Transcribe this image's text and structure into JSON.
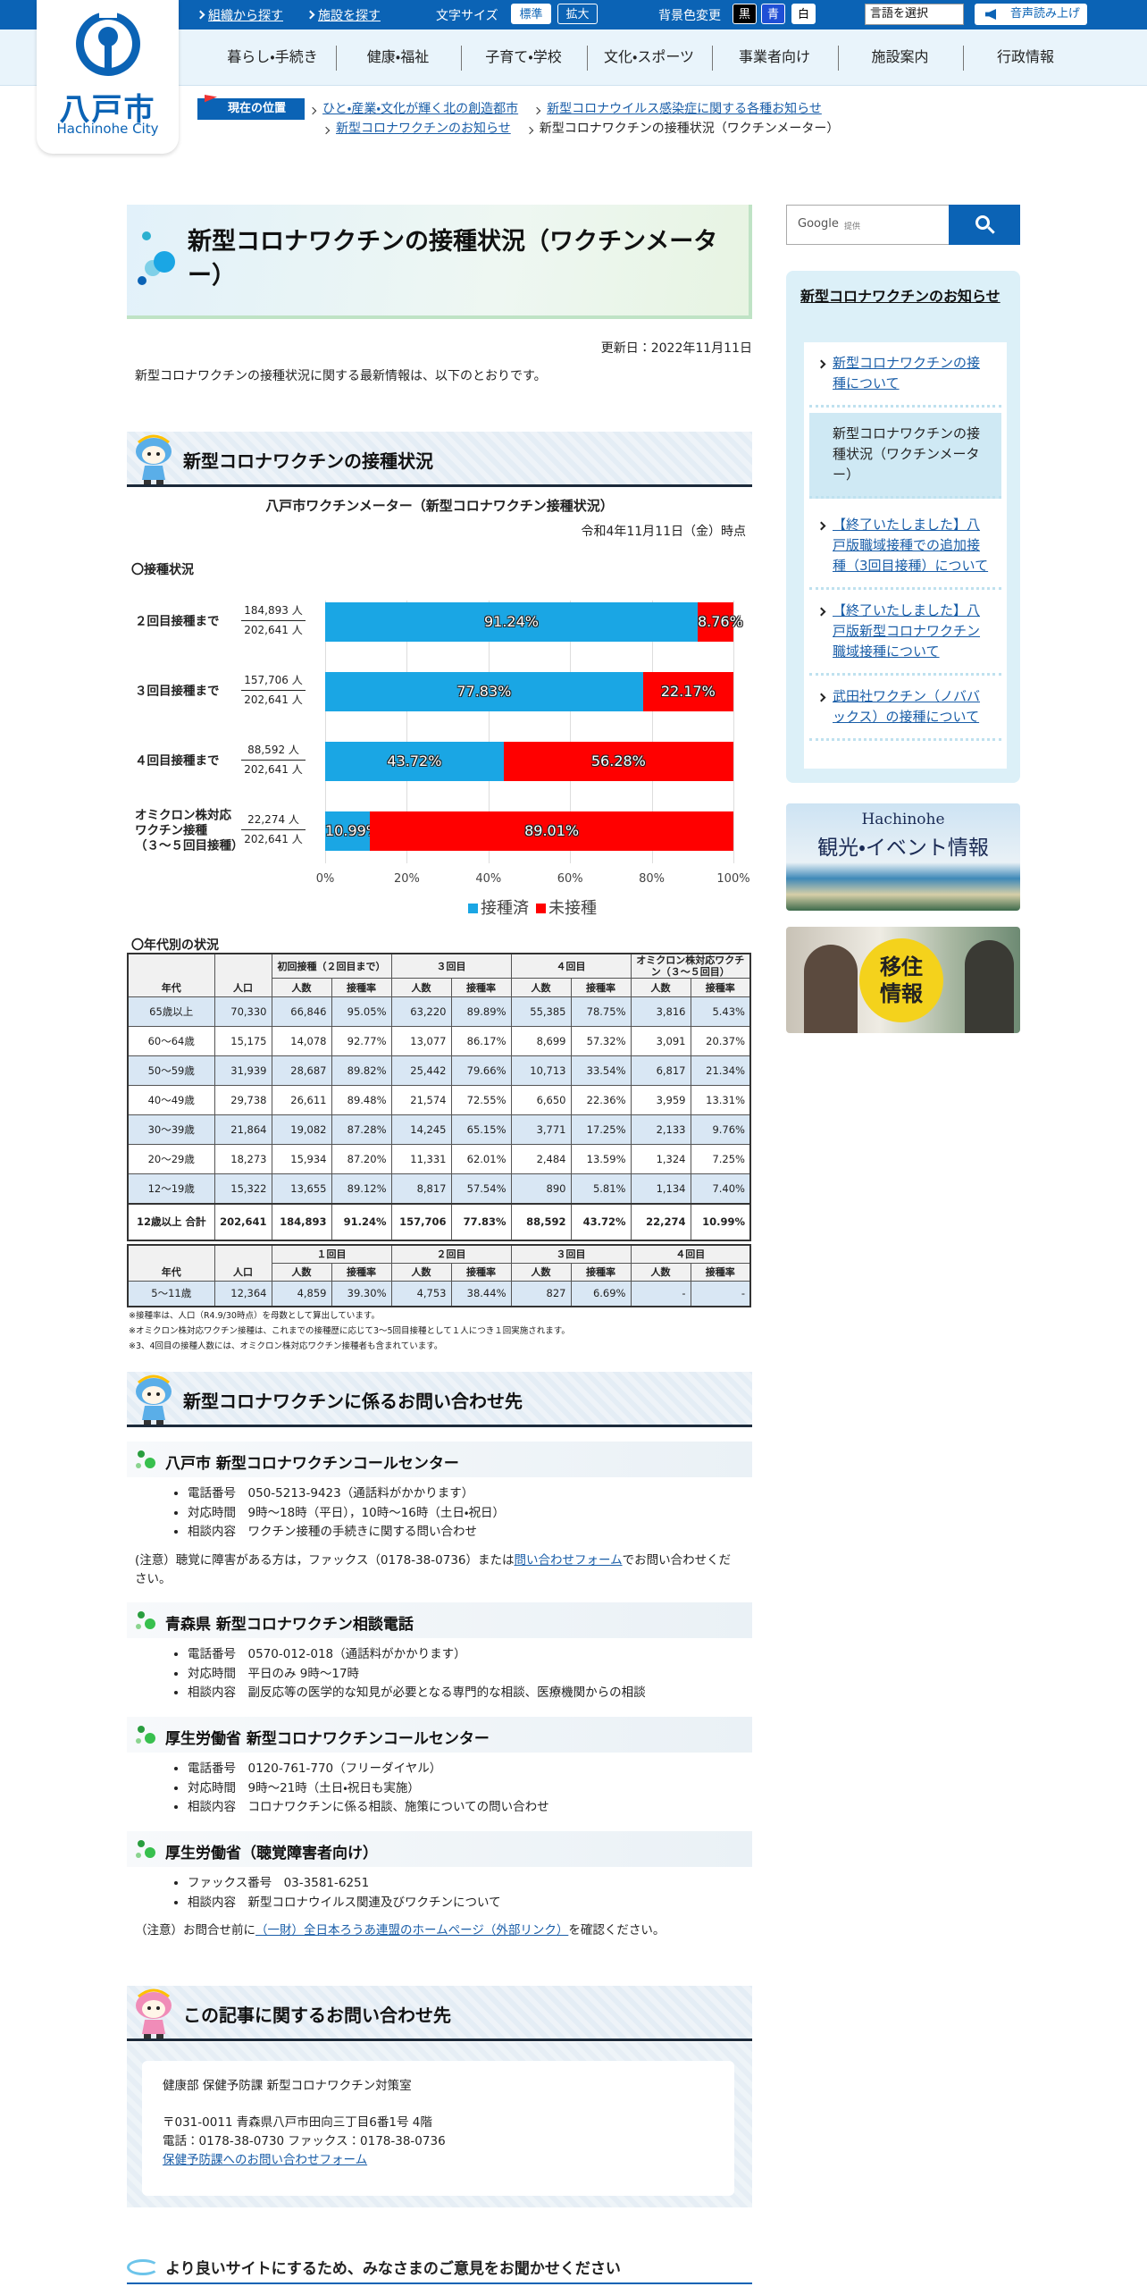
{
  "header": {
    "logo": {
      "name": "八戸市",
      "name_en": "Hachinohe City"
    },
    "utility_links": [
      "組織から探す",
      "施設を探す"
    ],
    "font_size": {
      "label": "文字サイズ",
      "options": [
        "標準",
        "拡大"
      ]
    },
    "bg_color": {
      "label": "背景色変更",
      "options": [
        "黒",
        "青",
        "白"
      ]
    },
    "language": "言語を選択",
    "read_aloud": "音声読み上げ",
    "nav": [
      "暮らし・手続き",
      "健康・福祉",
      "子育て・学校",
      "文化・スポーツ",
      "事業者向け",
      "施設案内",
      "行政情報"
    ]
  },
  "breadcrumb": {
    "label": "現在の位置",
    "items": [
      "ひと・産業・文化が輝く北の創造都市",
      "新型コロナウイルス感染症に関する各種お知らせ",
      "新型コロナワクチンのお知らせ",
      "新型コロナワクチンの接種状況（ワクチンメーター）"
    ]
  },
  "page": {
    "title": "新型コロナワクチンの接種状況（ワクチンメーター）",
    "updated": "更新日：2022年11月11日",
    "intro": "新型コロナワクチンの接種状況に関する最新情報は、以下のとおりです。",
    "status_heading": "新型コロナワクチンの接種状況"
  },
  "chart_data": {
    "type": "bar",
    "orientation": "horizontal",
    "stacked": true,
    "title": "八戸市ワクチンメーター（新型コロナワクチン接種状況）",
    "subtitle": "令和4年11月11日（金）時点",
    "section_label": "〇接種状況",
    "categories": [
      "２回目接種まで",
      "３回目接種まで",
      "４回目接種まで",
      "オミクロン株対応\nワクチン接種\n（３～５回目接種）"
    ],
    "counts": [
      {
        "numerator": "184,893 人",
        "denominator": "202,641 人"
      },
      {
        "numerator": "157,706 人",
        "denominator": "202,641 人"
      },
      {
        "numerator": "88,592 人",
        "denominator": "202,641 人"
      },
      {
        "numerator": "22,274 人",
        "denominator": "202,641 人"
      }
    ],
    "series": [
      {
        "name": "接種済",
        "color": "#1aa6e4",
        "values": [
          91.24,
          77.83,
          43.72,
          10.99
        ],
        "value_labels": [
          "91.24%",
          "77.83%",
          "43.72%",
          "10.99%"
        ]
      },
      {
        "name": "未接種",
        "color": "#ff0000",
        "values": [
          8.76,
          22.17,
          56.28,
          89.01
        ],
        "value_labels": [
          "8.76%",
          "22.17%",
          "56.28%",
          "89.01%"
        ]
      }
    ],
    "xlim": [
      0,
      100
    ],
    "xticks": [
      {
        "value": 0,
        "label": "0%"
      },
      {
        "value": 20,
        "label": "20%"
      },
      {
        "value": 40,
        "label": "40%"
      },
      {
        "value": 60,
        "label": "60%"
      },
      {
        "value": 80,
        "label": "80%"
      },
      {
        "value": 100,
        "label": "100%"
      }
    ],
    "grid": true,
    "legend": "bottom"
  },
  "age_tables": {
    "label": "〇年代別の状況",
    "table1": {
      "columns": [
        "年代",
        "人口"
      ],
      "groups": [
        "初回接種（２回目まで）",
        "３回目",
        "４回目",
        "オミクロン株対応ワクチン（３～５回目）"
      ],
      "subcolumns": [
        "人数",
        "接種率",
        "人数",
        "接種率",
        "人数",
        "接種率",
        "人数",
        "接種率"
      ],
      "rows": [
        [
          "65歳以上",
          "70,330",
          "66,846",
          "95.05%",
          "63,220",
          "89.89%",
          "55,385",
          "78.75%",
          "3,816",
          "5.43%"
        ],
        [
          "60～64歳",
          "15,175",
          "14,078",
          "92.77%",
          "13,077",
          "86.17%",
          "8,699",
          "57.32%",
          "3,091",
          "20.37%"
        ],
        [
          "50～59歳",
          "31,939",
          "28,687",
          "89.82%",
          "25,442",
          "79.66%",
          "10,713",
          "33.54%",
          "6,817",
          "21.34%"
        ],
        [
          "40～49歳",
          "29,738",
          "26,611",
          "89.48%",
          "21,574",
          "72.55%",
          "6,650",
          "22.36%",
          "3,959",
          "13.31%"
        ],
        [
          "30～39歳",
          "21,864",
          "19,082",
          "87.28%",
          "14,245",
          "65.15%",
          "3,771",
          "17.25%",
          "2,133",
          "9.76%"
        ],
        [
          "20～29歳",
          "18,273",
          "15,934",
          "87.20%",
          "11,331",
          "62.01%",
          "2,484",
          "13.59%",
          "1,324",
          "7.25%"
        ],
        [
          "12～19歳",
          "15,322",
          "13,655",
          "89.12%",
          "8,817",
          "57.54%",
          "890",
          "5.81%",
          "1,134",
          "7.40%"
        ],
        [
          "12歳以上 合計",
          "202,641",
          "184,893",
          "91.24%",
          "157,706",
          "77.83%",
          "88,592",
          "43.72%",
          "22,274",
          "10.99%"
        ]
      ]
    },
    "table2": {
      "columns": [
        "年代",
        "人口"
      ],
      "groups": [
        "１回目",
        "２回目",
        "３回目",
        "４回目"
      ],
      "subcolumns": [
        "人数",
        "接種率",
        "人数",
        "接種率",
        "人数",
        "接種率",
        "人数",
        "接種率"
      ],
      "rows": [
        [
          "5～11歳",
          "12,364",
          "4,859",
          "39.30%",
          "4,753",
          "38.44%",
          "827",
          "6.69%",
          "-",
          "-"
        ]
      ]
    },
    "notes": [
      "※接種率は、人口（R4.9/30時点）を母数として算出しています。",
      "※オミクロン株対応ワクチン接種は、これまでの接種歴に応じて3～5回目接種として１人につき１回実施されます。",
      "※3、4回目の接種人数には、オミクロン株対応ワクチン接種者も含まれています。"
    ]
  },
  "inquiry": {
    "heading": "新型コロナワクチンに係るお問い合わせ先",
    "blocks": [
      {
        "title": "八戸市 新型コロナワクチンコールセンター",
        "items": [
          "電話番号　050-5213-9423（通話料がかかります）",
          "対応時間　9時～18時（平日），10時～16時（土日・祝日）",
          "相談内容　ワクチン接種の手続きに関する問い合わせ"
        ],
        "note": {
          "before": "(注意）聴覚に障害がある方は，ファックス（0178-38-0736）または",
          "link": "問い合わせフォーム",
          "after": "でお問い合わせください。"
        }
      },
      {
        "title": "青森県 新型コロナワクチン相談電話",
        "items": [
          "電話番号　0570-012-018（通話料がかかります）",
          "対応時間　平日のみ 9時～17時",
          "相談内容　副反応等の医学的な知見が必要となる専門的な相談、医療機関からの相談"
        ]
      },
      {
        "title": "厚生労働省 新型コロナワクチンコールセンター",
        "items": [
          "電話番号　0120-761-770（フリーダイヤル）",
          "対応時間　9時～21時（土日・祝日も実施）",
          "相談内容　コロナワクチンに係る相談、施策についての問い合わせ"
        ]
      },
      {
        "title": "厚生労働省（聴覚障害者向け）",
        "items": [
          "ファックス番号　03-3581-6251",
          "相談内容　新型コロナウイルス関連及びワクチンについて"
        ],
        "note": {
          "before": "（注意）お問合せ前に",
          "link": "（一財）全日本ろうあ連盟のホームページ（外部リンク）",
          "after": "を確認ください。"
        }
      }
    ]
  },
  "article_contact": {
    "heading": "この記事に関するお問い合わせ先",
    "department": "健康部 保健予防課 新型コロナワクチン対策室",
    "address": "〒031-0011 青森県八戸市田向三丁目6番1号 4階",
    "phone": "電話：0178-38-0730 ファックス：0178-38-0736",
    "form_link": "保健予防課へのお問い合わせフォーム"
  },
  "feedback": {
    "heading": "より良いサイトにするため、みなさまのご意見をお聞かせください"
  },
  "sidebar": {
    "search": {
      "brand": "Google",
      "provided": "提供"
    },
    "menu": {
      "title": "新型コロナワクチンのお知らせ",
      "items": [
        {
          "label": "新型コロナワクチンの接種について"
        },
        {
          "label": "新型コロナワクチンの接種状況（ワクチンメーター）",
          "current": true
        },
        {
          "label": "【終了いたしました】八戸版職域接種での追加接種（3回目接種）について"
        },
        {
          "label": "【終了いたしました】八戸版新型コロナワクチン職域接種について"
        },
        {
          "label": "武田社ワクチン（ノババックス）の接種について"
        }
      ]
    },
    "banners": [
      {
        "brand": "Hachinohe",
        "label": "観光・イベント情報"
      },
      {
        "label": "移住\n情報"
      }
    ]
  }
}
